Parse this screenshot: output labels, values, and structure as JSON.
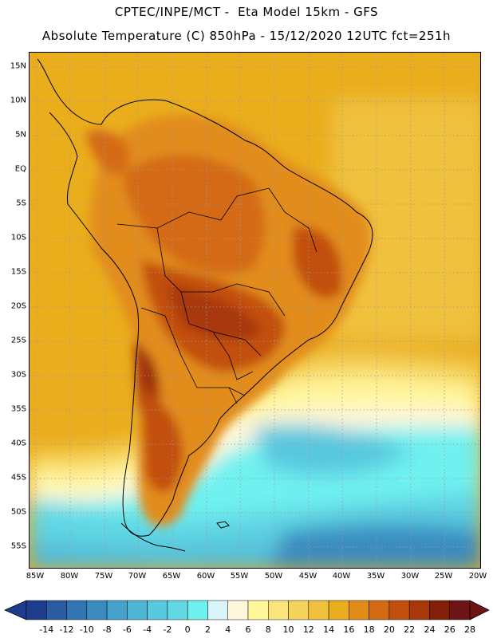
{
  "header": {
    "line1": "CPTEC/INPE/MCT -  Eta Model 15km - GFS",
    "line2": "Absolute Temperature (C) 850hPa - 15/12/2020 12UTC fct=251h"
  },
  "map": {
    "region": "South America",
    "variable": "Absolute Temperature (C) 850hPa",
    "lat_ticks": [
      "15N",
      "10N",
      "5N",
      "EQ",
      "5S",
      "10S",
      "15S",
      "20S",
      "25S",
      "30S",
      "35S",
      "40S",
      "45S",
      "50S",
      "55S"
    ],
    "lon_ticks": [
      "85W",
      "80W",
      "75W",
      "70W",
      "65W",
      "60W",
      "55W",
      "50W",
      "45W",
      "40W",
      "35W",
      "30W",
      "25W",
      "20W"
    ]
  },
  "colorbar": {
    "labels": [
      "-14",
      "-12",
      "-10",
      "-8",
      "-6",
      "-4",
      "-2",
      "0",
      "2",
      "4",
      "6",
      "8",
      "10",
      "12",
      "14",
      "16",
      "18",
      "20",
      "22",
      "24",
      "26",
      "28"
    ],
    "colors": [
      "#1d3d8c",
      "#2a5ca3",
      "#3375b4",
      "#3a8cc0",
      "#44a2cc",
      "#4fb6d6",
      "#58c8de",
      "#62d8e4",
      "#6ff1f0",
      "#d6f4fa",
      "#fff6dc",
      "#fff59b",
      "#fbe57a",
      "#f5d35a",
      "#f0c13c",
      "#eaad1e",
      "#e28c1a",
      "#d46a14",
      "#c24f0f",
      "#a8380a",
      "#852008",
      "#6e1416"
    ]
  }
}
